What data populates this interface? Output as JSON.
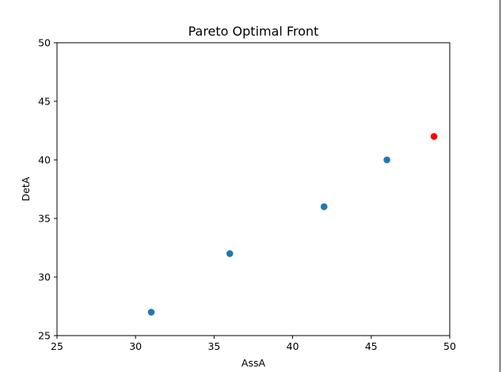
{
  "chart_data": {
    "type": "scatter",
    "title": "Pareto Optimal Front",
    "xlabel": "AssA",
    "ylabel": "DetA",
    "xlim": [
      25,
      50
    ],
    "ylim": [
      25,
      50
    ],
    "xticks": [
      25,
      30,
      35,
      40,
      45,
      50
    ],
    "yticks": [
      25,
      30,
      35,
      40,
      45,
      50
    ],
    "grid": false,
    "series": [
      {
        "color": "#1f77b4",
        "points": [
          {
            "x": 31,
            "y": 27
          },
          {
            "x": 36,
            "y": 32
          },
          {
            "x": 42,
            "y": 36
          },
          {
            "x": 46,
            "y": 40
          }
        ]
      },
      {
        "color": "#ff0000",
        "points": [
          {
            "x": 49,
            "y": 42
          }
        ]
      }
    ]
  }
}
